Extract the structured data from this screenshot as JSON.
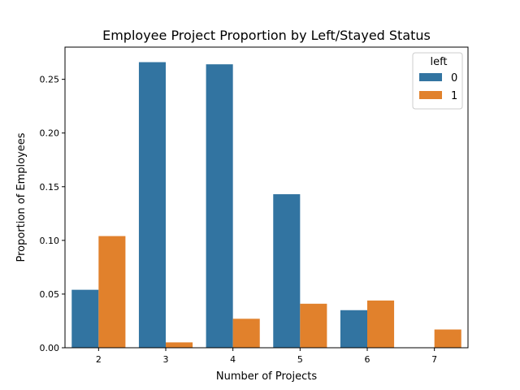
{
  "chart_data": {
    "type": "bar",
    "title": "Employee Project Proportion by Left/Stayed Status",
    "xlabel": "Number of Projects",
    "ylabel": "Proportion of Employees",
    "categories": [
      "2",
      "3",
      "4",
      "5",
      "6",
      "7"
    ],
    "series": [
      {
        "name": "0",
        "color": "#3274a1",
        "values": [
          0.054,
          0.266,
          0.264,
          0.143,
          0.035,
          0.0
        ]
      },
      {
        "name": "1",
        "color": "#e1812c",
        "values": [
          0.104,
          0.005,
          0.027,
          0.041,
          0.044,
          0.017
        ]
      }
    ],
    "ylim": [
      0,
      0.28
    ],
    "yticks": [
      "0.00",
      "0.05",
      "0.10",
      "0.15",
      "0.20",
      "0.25"
    ],
    "legend": {
      "title": "left",
      "placement": "top-right"
    },
    "grid": false
  }
}
